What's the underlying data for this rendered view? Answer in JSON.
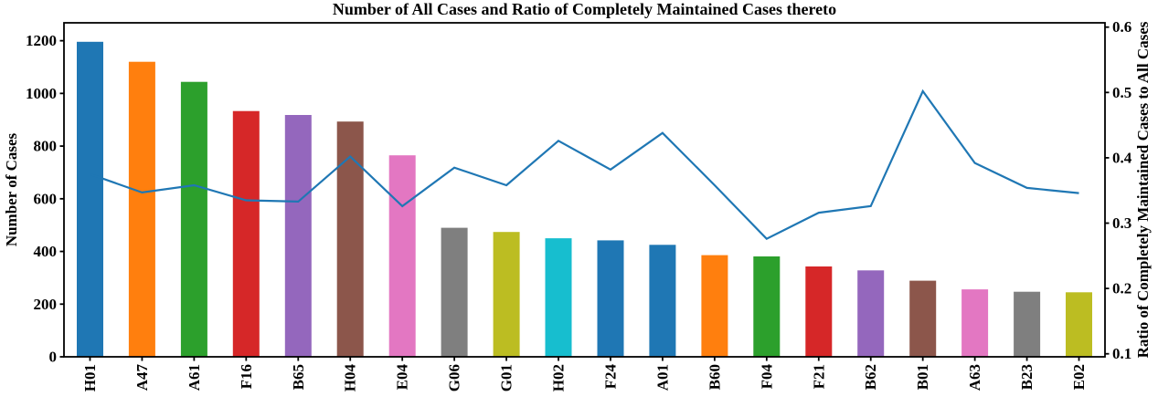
{
  "chart_data": {
    "type": "bar+line",
    "title": "Number of All Cases and Ratio of Completely Maintained Cases thereto",
    "categories": [
      "H01",
      "A47",
      "A61",
      "F16",
      "B65",
      "H04",
      "E04",
      "G06",
      "G01",
      "H02",
      "F24",
      "A01",
      "B60",
      "F04",
      "F21",
      "B62",
      "B01",
      "A63",
      "B23",
      "E02"
    ],
    "series": [
      {
        "name": "Number of All Cases",
        "type": "bar",
        "axis": "left",
        "values": [
          1196,
          1120,
          1044,
          933,
          918,
          893,
          765,
          490,
          474,
          450,
          442,
          425,
          386,
          381,
          343,
          328,
          289,
          256,
          247,
          245
        ]
      },
      {
        "name": "Ratio of Completely Maintained Cases to All Cases",
        "type": "line",
        "axis": "right",
        "color": "#1f77b4",
        "values": [
          0.375,
          0.347,
          0.358,
          0.335,
          0.333,
          0.402,
          0.326,
          0.385,
          0.358,
          0.426,
          0.382,
          0.438,
          0.358,
          0.276,
          0.316,
          0.326,
          0.502,
          0.392,
          0.354,
          0.346
        ]
      }
    ],
    "bar_colors": [
      "#1f77b4",
      "#ff7f0e",
      "#2ca02c",
      "#d62728",
      "#9467bd",
      "#8c564b",
      "#e377c2",
      "#7f7f7f",
      "#bcbd22",
      "#17becf",
      "#1f77b4",
      "#1f77b4",
      "#ff7f0e",
      "#2ca02c",
      "#d62728",
      "#9467bd",
      "#8c564b",
      "#e377c2",
      "#7f7f7f",
      "#bcbd22"
    ],
    "left_axis": {
      "label": "Number of Cases",
      "min": 0,
      "max": 1268,
      "ticks": [
        0,
        200,
        400,
        600,
        800,
        1000,
        1200
      ]
    },
    "right_axis": {
      "label": "Ratio of Completely Maintained Cases to All Cases",
      "min": 0.0954,
      "max": 0.6066,
      "ticks": [
        0.1,
        0.2,
        0.3,
        0.4,
        0.5,
        0.6
      ]
    },
    "grid": false,
    "legend": "none",
    "text_color": "#000000",
    "background": "#ffffff",
    "spine_color": "#000000"
  }
}
